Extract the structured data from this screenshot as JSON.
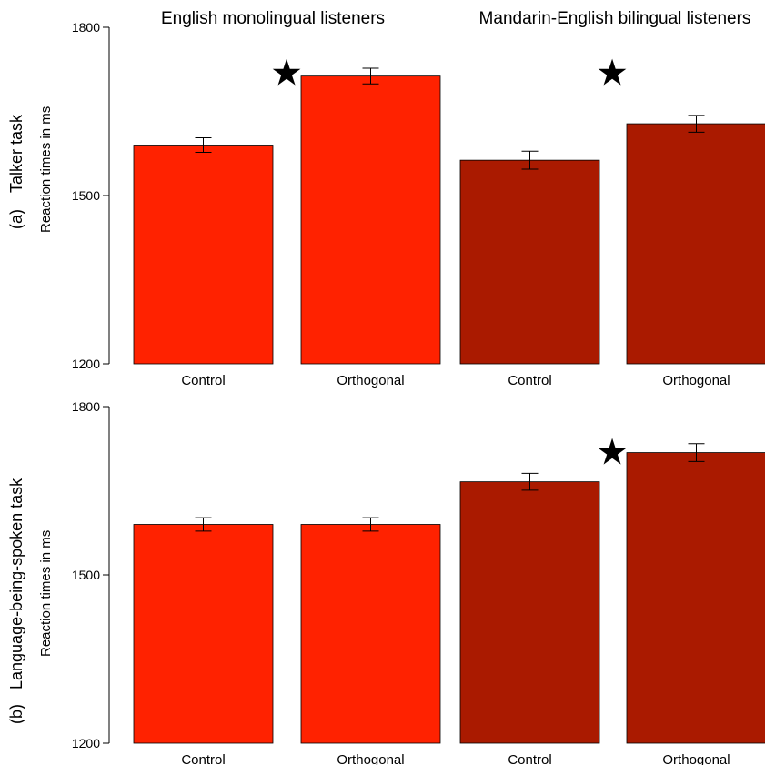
{
  "group_titles": [
    "English monolingual listeners",
    "Mandarin-English bilingual listeners"
  ],
  "colors": {
    "english": "#ff2200",
    "bilingual": "#aa1a00"
  },
  "star_symbol": "★",
  "chart_data": [
    {
      "type": "bar",
      "panel_label": "(a)",
      "task": "Talker task",
      "ylabel": "Reaction times in ms",
      "ylim": [
        1200,
        1800
      ],
      "yticks": [
        1200,
        1500,
        1800
      ],
      "categories": [
        "Control",
        "Orthogonal",
        "Control",
        "Orthogonal"
      ],
      "groups": [
        "English monolingual listeners",
        "English monolingual listeners",
        "Mandarin-English bilingual listeners",
        "Mandarin-English bilingual listeners"
      ],
      "values": [
        1590,
        1713,
        1563,
        1628
      ],
      "error": [
        13,
        14,
        16,
        15
      ],
      "significant": [
        false,
        true,
        false,
        true
      ]
    },
    {
      "type": "bar",
      "panel_label": "(b)",
      "task": "Language-being-spoken task",
      "ylabel": "Reaction times in ms",
      "ylim": [
        1200,
        1800
      ],
      "yticks": [
        1200,
        1500,
        1800
      ],
      "categories": [
        "Control",
        "Orthogonal",
        "Control",
        "Orthogonal"
      ],
      "groups": [
        "English monolingual listeners",
        "English monolingual listeners",
        "Mandarin-English bilingual listeners",
        "Mandarin-English bilingual listeners"
      ],
      "values": [
        1590,
        1590,
        1666,
        1718
      ],
      "error": [
        12,
        12,
        15,
        16
      ],
      "significant": [
        false,
        false,
        false,
        true
      ]
    }
  ]
}
